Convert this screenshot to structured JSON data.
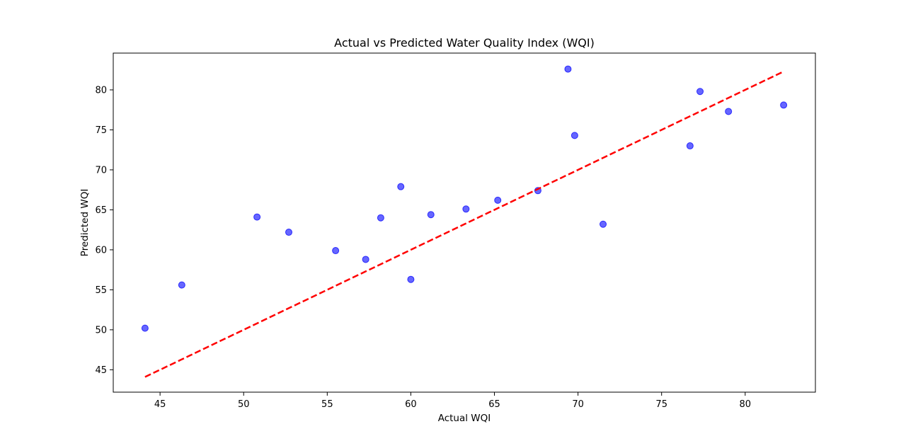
{
  "chart_data": {
    "type": "scatter",
    "title": "Actual vs Predicted Water Quality Index (WQI)",
    "xlabel": "Actual WQI",
    "ylabel": "Predicted WQI",
    "xlim": [
      42.2,
      84.2
    ],
    "ylim": [
      42.2,
      84.6
    ],
    "xticks": [
      45,
      50,
      55,
      60,
      65,
      70,
      75,
      80
    ],
    "yticks": [
      45,
      50,
      55,
      60,
      65,
      70,
      75,
      80
    ],
    "grid": false,
    "point_color": "#0000ff",
    "point_opacity": 0.6,
    "points": [
      {
        "x": 44.1,
        "y": 50.2
      },
      {
        "x": 46.3,
        "y": 55.6
      },
      {
        "x": 50.8,
        "y": 64.1
      },
      {
        "x": 52.7,
        "y": 62.2
      },
      {
        "x": 55.5,
        "y": 59.9
      },
      {
        "x": 57.3,
        "y": 58.8
      },
      {
        "x": 58.2,
        "y": 64.0
      },
      {
        "x": 59.4,
        "y": 67.9
      },
      {
        "x": 60.0,
        "y": 56.3
      },
      {
        "x": 61.2,
        "y": 64.4
      },
      {
        "x": 63.3,
        "y": 65.1
      },
      {
        "x": 65.2,
        "y": 66.2
      },
      {
        "x": 67.6,
        "y": 67.4
      },
      {
        "x": 69.4,
        "y": 82.6
      },
      {
        "x": 69.8,
        "y": 74.3
      },
      {
        "x": 71.5,
        "y": 63.2
      },
      {
        "x": 76.7,
        "y": 73.0
      },
      {
        "x": 77.3,
        "y": 79.8
      },
      {
        "x": 79.0,
        "y": 77.3
      },
      {
        "x": 82.3,
        "y": 78.1
      }
    ],
    "reference_line": {
      "style": "dashed",
      "color": "#ff0000",
      "from": [
        44.1,
        44.1
      ],
      "to": [
        82.3,
        82.3
      ]
    }
  }
}
